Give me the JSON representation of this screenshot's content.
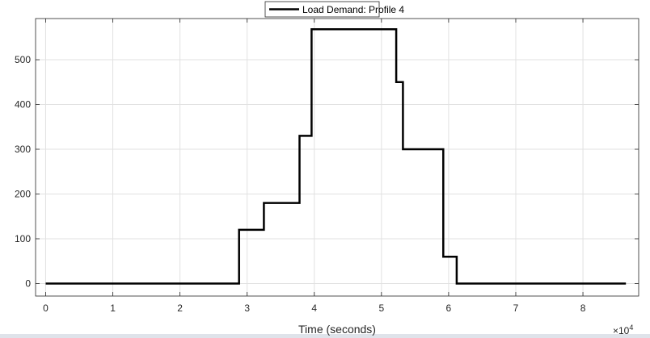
{
  "colors": {
    "background": "#ffffff",
    "grid": "#e1e1e1",
    "axis": "#262626",
    "series_line": "#000000",
    "bottom_strip": "#dfe3ea"
  },
  "chart_data": {
    "type": "line",
    "step": true,
    "title": "",
    "xlabel": "Time (seconds)",
    "ylabel": "",
    "x_exponent_label": "×10",
    "x_exponent_power": "4",
    "xlim": [
      -0.15,
      8.83
    ],
    "ylim": [
      -28,
      592
    ],
    "xticks": [
      0,
      1,
      2,
      3,
      4,
      5,
      6,
      7,
      8
    ],
    "xtick_labels": [
      "0",
      "1",
      "2",
      "3",
      "4",
      "5",
      "6",
      "7",
      "8"
    ],
    "yticks": [
      0,
      100,
      200,
      300,
      400,
      500
    ],
    "ytick_labels": [
      "0",
      "100",
      "200",
      "300",
      "400",
      "500"
    ],
    "grid": true,
    "legend_position": "top-center",
    "series": [
      {
        "name": "Load Demand: Profile 4",
        "color": "#000000",
        "x": [
          0,
          2.88,
          2.88,
          3.25,
          3.25,
          3.78,
          3.78,
          3.96,
          3.96,
          5.22,
          5.22,
          5.32,
          5.32,
          5.92,
          5.92,
          6.12,
          6.12,
          8.64
        ],
        "y": [
          0,
          0,
          120,
          120,
          180,
          180,
          330,
          330,
          568,
          568,
          450,
          450,
          300,
          300,
          60,
          60,
          0,
          0
        ]
      }
    ]
  }
}
